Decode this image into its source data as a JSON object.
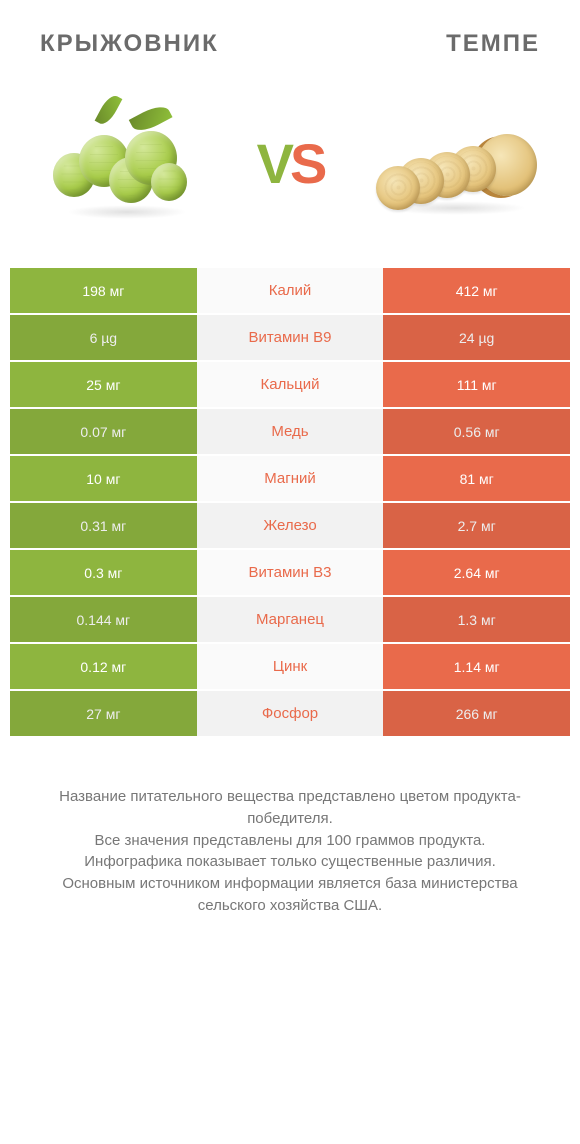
{
  "header": {
    "left": "КРЫЖОВНИК",
    "right": "ТЕМПЕ"
  },
  "vs": {
    "v": "V",
    "s": "S",
    "v_color": "#8eb53f",
    "s_color": "#e96a4b"
  },
  "colors": {
    "left_bg": "#8eb53f",
    "right_bg": "#e96a4b",
    "mid_text_default": "#888888"
  },
  "table": {
    "rows": [
      {
        "left": "198 мг",
        "label": "Калий",
        "right": "412 мг",
        "winner": "right"
      },
      {
        "left": "6 µg",
        "label": "Витамин B9",
        "right": "24 µg",
        "winner": "right"
      },
      {
        "left": "25 мг",
        "label": "Кальций",
        "right": "111 мг",
        "winner": "right"
      },
      {
        "left": "0.07 мг",
        "label": "Медь",
        "right": "0.56 мг",
        "winner": "right"
      },
      {
        "left": "10 мг",
        "label": "Магний",
        "right": "81 мг",
        "winner": "right"
      },
      {
        "left": "0.31 мг",
        "label": "Железо",
        "right": "2.7 мг",
        "winner": "right"
      },
      {
        "left": "0.3 мг",
        "label": "Витамин B3",
        "right": "2.64 мг",
        "winner": "right"
      },
      {
        "left": "0.144 мг",
        "label": "Марганец",
        "right": "1.3 мг",
        "winner": "right"
      },
      {
        "left": "0.12 мг",
        "label": "Цинк",
        "right": "1.14 мг",
        "winner": "right"
      },
      {
        "left": "27 мг",
        "label": "Фосфор",
        "right": "266 мг",
        "winner": "right"
      }
    ]
  },
  "footer": {
    "lines": [
      "Название питательного вещества представлено цветом продукта-победителя.",
      "Все значения представлены для 100 граммов продукта.",
      "Инфографика показывает только существенные различия.",
      "Основным источником информации является база министерства сельского хозяйства США."
    ]
  }
}
